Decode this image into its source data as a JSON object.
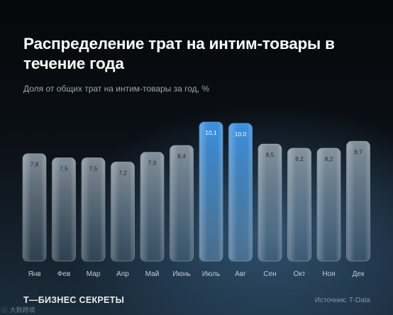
{
  "header": {
    "title": "Распределение трат на интим-товары в течение года",
    "subtitle": "Доля от общих трат на интим-товары за год, %"
  },
  "footer": {
    "brand": "Т—БИЗНЕС СЕКРЕТЫ",
    "source": "Источник: T-Data",
    "corner_mark": "ⓒ 大数跨境"
  },
  "colors": {
    "bar_regular": "#b9cad8",
    "bar_highlight": "#2f86d6",
    "background": "#0b1016"
  },
  "chart_data": {
    "type": "bar",
    "title": "Распределение трат на интим-товары в течение года",
    "subtitle": "Доля от общих трат на интим-товары за год, %",
    "categories": [
      "Янв",
      "Фев",
      "Мар",
      "Апр",
      "Май",
      "Июнь",
      "Июль",
      "Авг",
      "Сен",
      "Окт",
      "Ноя",
      "Дек"
    ],
    "values": [
      7.8,
      7.5,
      7.5,
      7.2,
      7.9,
      8.4,
      10.1,
      10.0,
      8.5,
      8.2,
      8.2,
      8.7
    ],
    "value_labels": [
      "7,8",
      "7,5",
      "7,5",
      "7,2",
      "7,9",
      "8,4",
      "10,1",
      "10.0",
      "8,5",
      "8,2",
      "8,2",
      "8,7"
    ],
    "highlighted": [
      "Июль",
      "Авг"
    ],
    "ylim": [
      0,
      10.1
    ],
    "grid": false,
    "legend": "none"
  }
}
